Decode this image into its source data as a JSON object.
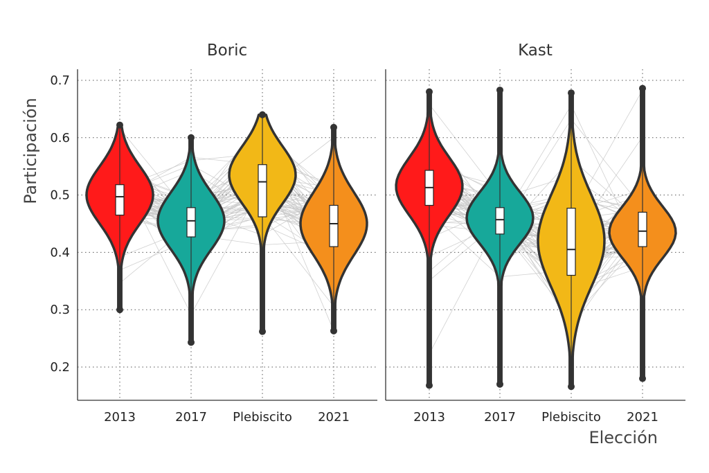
{
  "chart_data": {
    "type": "violin",
    "ylabel": "Participación",
    "xlabel": "Elección",
    "ylim": [
      0.16,
      0.72
    ],
    "yticks": [
      0.2,
      0.3,
      0.4,
      0.5,
      0.6,
      0.7
    ],
    "ytick_labels": [
      "0.2",
      "0.3",
      "0.4",
      "0.5",
      "0.6",
      "0.7"
    ],
    "categories": [
      "2013",
      "2017",
      "Plebiscito",
      "2021"
    ],
    "grid": true,
    "connecting_lines": true,
    "colors": {
      "2013": "#ff1a1a",
      "2017": "#17a89a",
      "Plebiscito": "#f2b817",
      "2021": "#f48f1c",
      "outline": "#333333",
      "lines": "#c8c8c8"
    },
    "panels": [
      {
        "title": "Boric",
        "series": [
          {
            "category": "2013",
            "min": 0.3,
            "q1": 0.465,
            "median": 0.497,
            "q3": 0.518,
            "max": 0.622,
            "mode": 0.5,
            "spread": 0.05
          },
          {
            "category": "2017",
            "min": 0.243,
            "q1": 0.427,
            "median": 0.455,
            "q3": 0.478,
            "max": 0.6,
            "mode": 0.455,
            "spread": 0.05
          },
          {
            "category": "Plebiscito",
            "min": 0.262,
            "q1": 0.462,
            "median": 0.523,
            "q3": 0.553,
            "max": 0.64,
            "mode": 0.535,
            "spread": 0.05
          },
          {
            "category": "2021",
            "min": 0.263,
            "q1": 0.41,
            "median": 0.45,
            "q3": 0.482,
            "max": 0.618,
            "mode": 0.45,
            "spread": 0.055
          }
        ]
      },
      {
        "title": "Kast",
        "series": [
          {
            "category": "2013",
            "min": 0.168,
            "q1": 0.482,
            "median": 0.513,
            "q3": 0.543,
            "max": 0.68,
            "mode": 0.515,
            "spread": 0.05
          },
          {
            "category": "2017",
            "min": 0.17,
            "q1": 0.432,
            "median": 0.457,
            "q3": 0.478,
            "max": 0.683,
            "mode": 0.46,
            "spread": 0.045
          },
          {
            "category": "Plebiscito",
            "min": 0.166,
            "q1": 0.36,
            "median": 0.405,
            "q3": 0.477,
            "max": 0.678,
            "mode": 0.42,
            "spread": 0.08
          },
          {
            "category": "2021",
            "min": 0.18,
            "q1": 0.41,
            "median": 0.437,
            "q3": 0.47,
            "max": 0.686,
            "mode": 0.435,
            "spread": 0.045
          }
        ]
      }
    ]
  }
}
